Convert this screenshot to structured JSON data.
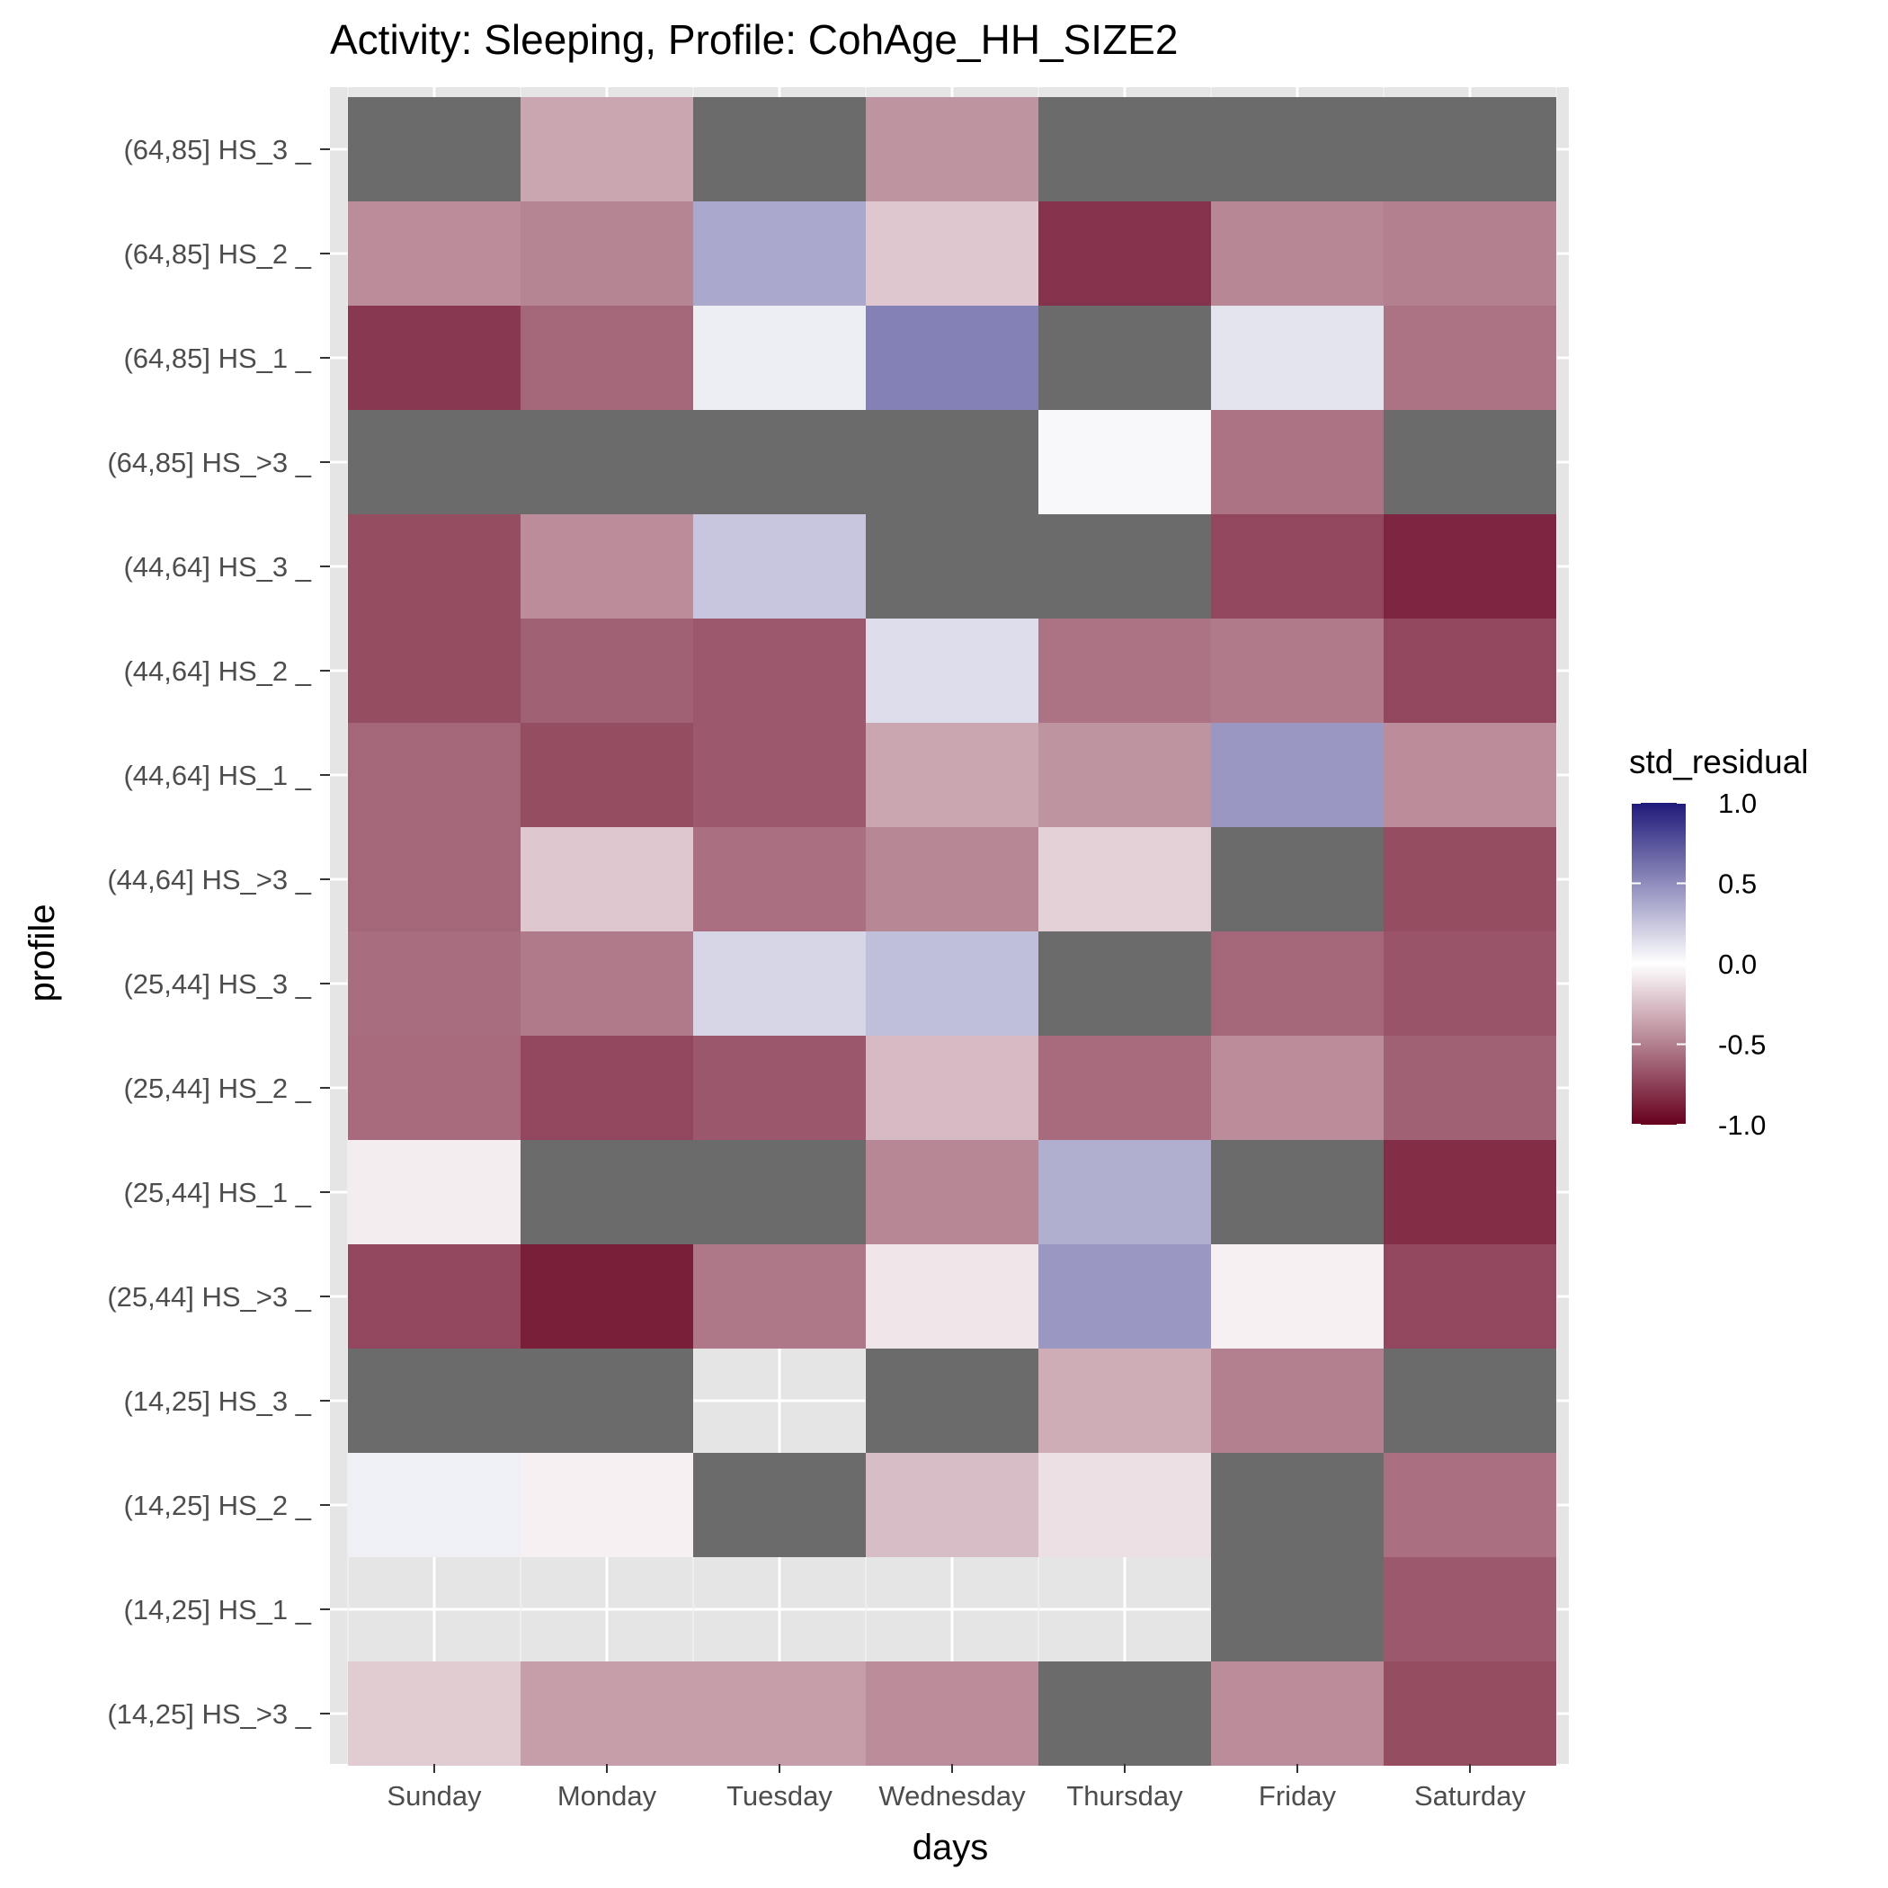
{
  "chart_data": {
    "type": "heatmap",
    "title": "Activity: Sleeping, Profile: CohAge_HH_SIZE2",
    "xlabel": "days",
    "ylabel": "profile",
    "x_categories": [
      "Sunday",
      "Monday",
      "Tuesday",
      "Wednesday",
      "Thursday",
      "Friday",
      "Saturday"
    ],
    "y_categories": [
      "(64,85] HS_3 _",
      "(64,85] HS_2 _",
      "(64,85] HS_1 _",
      "(64,85] HS_>3 _",
      "(44,64] HS_3 _",
      "(44,64] HS_2 _",
      "(44,64] HS_1 _",
      "(44,64] HS_>3 _",
      "(25,44] HS_3 _",
      "(25,44] HS_2 _",
      "(25,44] HS_1 _",
      "(25,44] HS_>3 _",
      "(14,25] HS_3 _",
      "(14,25] HS_2 _",
      "(14,25] HS_1 _",
      "(14,25] HS_>3 _"
    ],
    "values": [
      [
        null,
        -0.35,
        null,
        -0.42,
        null,
        null,
        null
      ],
      [
        -0.45,
        -0.48,
        0.38,
        -0.22,
        -0.8,
        -0.47,
        -0.5
      ],
      [
        -0.78,
        -0.6,
        0.08,
        0.55,
        null,
        0.12,
        -0.55
      ],
      [
        null,
        null,
        null,
        null,
        0.03,
        -0.55,
        null
      ],
      [
        -0.7,
        -0.45,
        0.25,
        null,
        null,
        -0.72,
        -0.85
      ],
      [
        -0.7,
        -0.62,
        -0.65,
        0.15,
        -0.55,
        -0.52,
        -0.72
      ],
      [
        -0.6,
        -0.7,
        -0.65,
        -0.35,
        -0.42,
        0.45,
        -0.45
      ],
      [
        -0.6,
        -0.22,
        -0.56,
        -0.47,
        -0.18,
        null,
        -0.7
      ],
      [
        -0.57,
        -0.52,
        0.18,
        0.28,
        null,
        -0.6,
        -0.67
      ],
      [
        -0.58,
        -0.72,
        -0.66,
        -0.27,
        -0.58,
        -0.45,
        -0.62
      ],
      [
        -0.07,
        null,
        null,
        -0.47,
        0.35,
        null,
        -0.82
      ],
      [
        -0.72,
        -0.88,
        -0.53,
        -0.1,
        0.45,
        -0.06,
        -0.72
      ],
      [
        null,
        null,
        "na",
        null,
        -0.32,
        -0.5,
        null
      ],
      [
        0.07,
        -0.06,
        null,
        -0.26,
        -0.12,
        null,
        -0.56
      ],
      [
        "na",
        "na",
        "na",
        "na",
        "na",
        null,
        -0.65
      ],
      [
        -0.2,
        -0.38,
        -0.38,
        -0.45,
        null,
        -0.45,
        -0.7
      ]
    ],
    "missing_color": "#6b6b6b",
    "legend": {
      "title": "std_residual",
      "ticks": [
        "1.0",
        "0.5",
        "0.0",
        "-0.5",
        "-1.0"
      ],
      "range": [
        -1.0,
        1.0
      ],
      "placement": "right",
      "low_color": "#67001f",
      "mid_color": "#ffffff",
      "high_color": "#1f1a7a"
    },
    "panel_background": "#e5e5e5",
    "grid": true
  }
}
